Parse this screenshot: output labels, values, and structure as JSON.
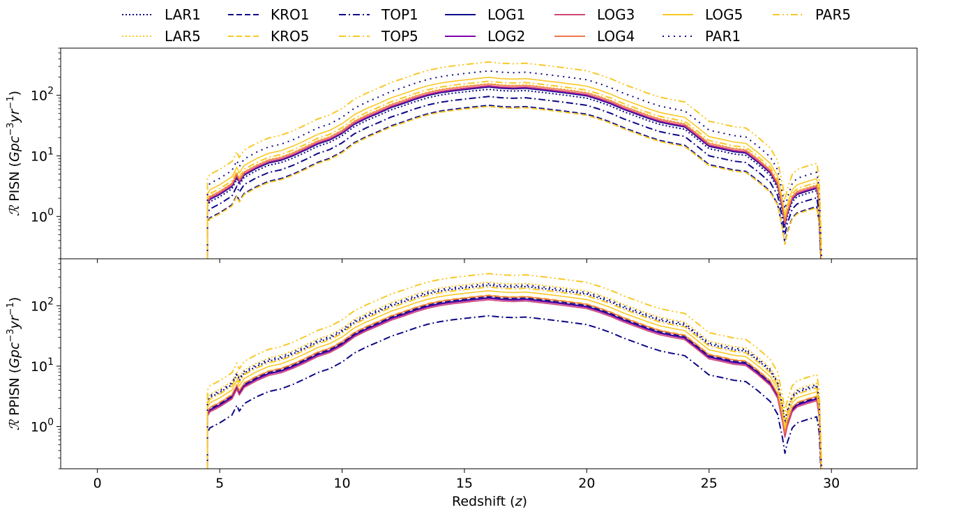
{
  "chart_data": {
    "type": "line",
    "xlabel": "Redshift (z)",
    "x_ticks": [
      0,
      5,
      10,
      15,
      20,
      25,
      30
    ],
    "xlim": [
      -1.5,
      33.5
    ],
    "yscale": "log",
    "ylim": [
      0.2,
      600
    ],
    "y_ticks": [
      {
        "value": 1,
        "base": "10",
        "exp": "0"
      },
      {
        "value": 10,
        "base": "10",
        "exp": "1"
      },
      {
        "value": 100,
        "base": "10",
        "exp": "2"
      }
    ],
    "legend_position": "top-center, above plots",
    "series_styles": [
      {
        "name": "LAR1",
        "color": "#0d0887",
        "dash": "2,3"
      },
      {
        "name": "LAR5",
        "color": "#f9c826",
        "dash": "2,3"
      },
      {
        "name": "KRO1",
        "color": "#0d0887",
        "dash": "8,4"
      },
      {
        "name": "KRO5",
        "color": "#f9c826",
        "dash": "8,4"
      },
      {
        "name": "TOP1",
        "color": "#0d0887",
        "dash": "10,4,2,4"
      },
      {
        "name": "TOP5",
        "color": "#f9c826",
        "dash": "10,4,2,4"
      },
      {
        "name": "LOG1",
        "color": "#0d0887",
        "dash": ""
      },
      {
        "name": "LOG2",
        "color": "#7e03a8",
        "dash": ""
      },
      {
        "name": "LOG3",
        "color": "#cc4778",
        "dash": ""
      },
      {
        "name": "LOG4",
        "color": "#f0784a",
        "dash": ""
      },
      {
        "name": "LOG5",
        "color": "#f9c826",
        "dash": ""
      },
      {
        "name": "PAR1",
        "color": "#0d0887",
        "dash": "2,6"
      },
      {
        "name": "PAR5",
        "color": "#f9c826",
        "dash": "10,4,2,4,2,4"
      }
    ],
    "base_curve": {
      "x": [
        4.5,
        4.6,
        5.0,
        5.5,
        5.7,
        5.8,
        6.0,
        6.5,
        7.0,
        7.5,
        8.0,
        8.5,
        9.0,
        9.5,
        10.0,
        10.5,
        11.0,
        11.5,
        12.0,
        12.5,
        13.0,
        13.5,
        14.0,
        14.5,
        15.0,
        15.5,
        16.0,
        16.5,
        17.0,
        17.5,
        18.0,
        18.5,
        19.0,
        19.5,
        20.0,
        20.5,
        21.0,
        21.5,
        22.0,
        22.5,
        23.0,
        23.5,
        24.0,
        24.5,
        25.0,
        25.5,
        26.0,
        26.5,
        27.0,
        27.5,
        27.8,
        28.0,
        28.1,
        28.2,
        28.4,
        28.6,
        29.0,
        29.4,
        29.5,
        29.6
      ],
      "y": [
        1.6,
        1.9,
        2.3,
        3.1,
        4.5,
        3.6,
        4.8,
        6.2,
        7.6,
        8.4,
        10.0,
        12.4,
        15.6,
        18.2,
        23.4,
        33.0,
        41.6,
        50.7,
        62.4,
        72.8,
        85.8,
        98.8,
        109.2,
        117.0,
        123.5,
        130.0,
        136.5,
        130.0,
        127.4,
        130.0,
        123.5,
        117.0,
        110.5,
        104.0,
        97.5,
        84.5,
        71.5,
        58.5,
        49.4,
        41.6,
        35.8,
        32.5,
        29.9,
        20.8,
        14.3,
        13.0,
        11.7,
        11.1,
        7.8,
        5.2,
        3.2,
        1.3,
        0.72,
        1.1,
        1.9,
        2.3,
        2.6,
        2.9,
        1.6,
        0.1
      ]
    },
    "panels": [
      {
        "ylabel_prefix": "PISN",
        "series": [
          {
            "name": "LAR1",
            "scale": 0.92
          },
          {
            "name": "LAR5",
            "scale": 1.15
          },
          {
            "name": "KRO1",
            "scale": 0.5
          },
          {
            "name": "KRO5",
            "scale": 0.48
          },
          {
            "name": "TOP1",
            "scale": 0.7
          },
          {
            "name": "TOP5",
            "scale": 1.25
          },
          {
            "name": "LOG1",
            "scale": 1.0
          },
          {
            "name": "LOG2",
            "scale": 1.03
          },
          {
            "name": "LOG3",
            "scale": 1.06
          },
          {
            "name": "LOG4",
            "scale": 1.12
          },
          {
            "name": "LOG5",
            "scale": 1.45
          },
          {
            "name": "PAR1",
            "scale": 1.85
          },
          {
            "name": "PAR5",
            "scale": 2.6
          }
        ]
      },
      {
        "ylabel_prefix": "PPISN",
        "series": [
          {
            "name": "LAR1",
            "scale": 1.6
          },
          {
            "name": "LAR5",
            "scale": 1.8
          },
          {
            "name": "KRO1",
            "scale": 1.05
          },
          {
            "name": "KRO5",
            "scale": 1.1
          },
          {
            "name": "TOP1",
            "scale": 0.5
          },
          {
            "name": "TOP5",
            "scale": 1.5
          },
          {
            "name": "LOG1",
            "scale": 1.0
          },
          {
            "name": "LOG2",
            "scale": 0.97
          },
          {
            "name": "LOG3",
            "scale": 0.92
          },
          {
            "name": "LOG4",
            "scale": 1.08
          },
          {
            "name": "LOG5",
            "scale": 1.3
          },
          {
            "name": "PAR1",
            "scale": 1.7
          },
          {
            "name": "PAR5",
            "scale": 2.5
          }
        ]
      }
    ]
  }
}
